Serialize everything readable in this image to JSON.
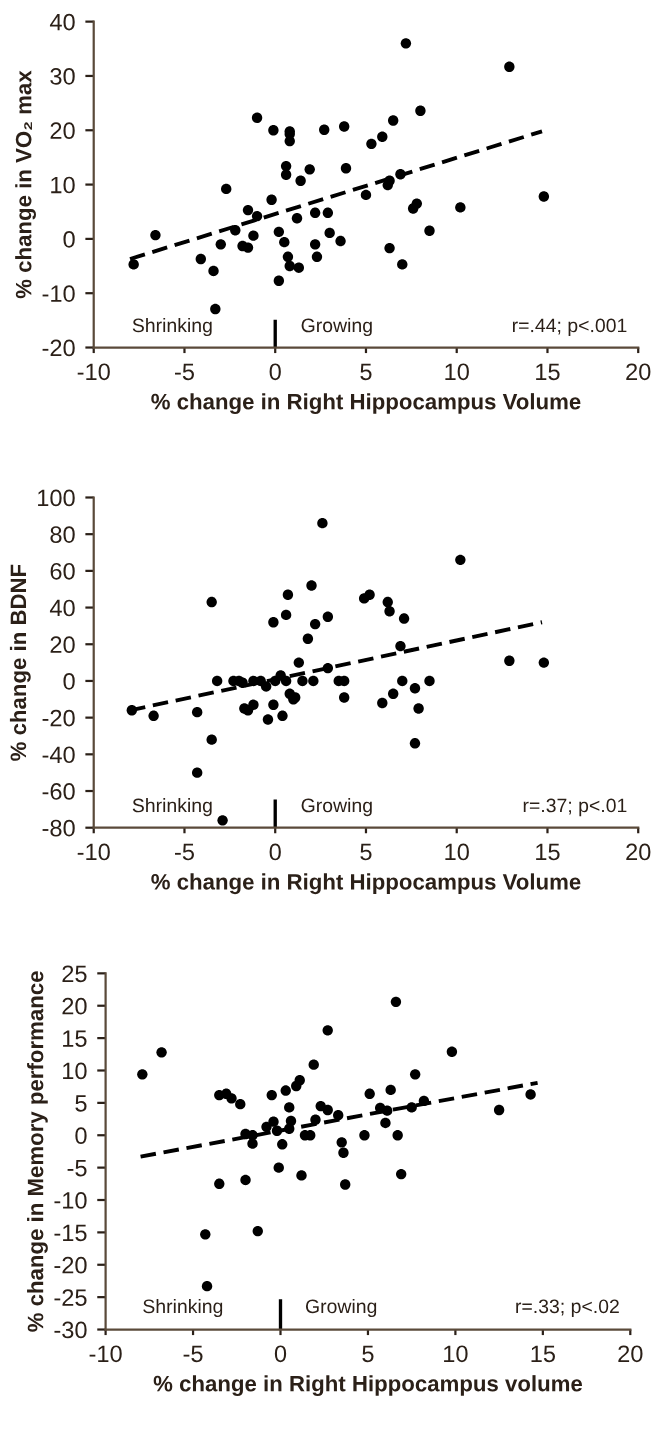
{
  "chart_data": [
    {
      "type": "scatter",
      "xlabel": "% change in Right Hippocampus Volume",
      "ylabel": "% change in VO₂ max",
      "xlim": [
        -10,
        20
      ],
      "xticks": [
        -10,
        -5,
        0,
        5,
        10,
        15,
        20
      ],
      "ylim": [
        -20,
        40
      ],
      "yticks": [
        -20,
        -10,
        0,
        10,
        20,
        30,
        40
      ],
      "grid": false,
      "legend": false,
      "annotations": [
        "Shrinking",
        "Growing",
        "r=.44; p<.001"
      ],
      "series": [
        {
          "color": "#000000",
          "marker": "circle",
          "x": [
            -7.8,
            -6.6,
            -4.1,
            -3.4,
            -3.3,
            -3.0,
            -2.7,
            -2.2,
            -1.8,
            -1.5,
            -1.5,
            -1.2,
            -1.0,
            -1.0,
            -0.1,
            -0.2,
            0.2,
            0.2,
            0.5,
            0.6,
            0.6,
            0.7,
            0.8,
            0.8,
            0.8,
            0.8,
            1.2,
            1.3,
            1.4,
            1.9,
            2.2,
            2.2,
            2.3,
            2.7,
            2.9,
            3.0,
            3.6,
            3.8,
            3.9,
            5.0,
            5.3,
            5.9,
            6.2,
            6.3,
            6.3,
            6.5,
            6.9,
            7.0,
            7.2,
            7.6,
            7.8,
            8.0,
            8.5,
            10.2,
            12.9,
            14.8
          ],
          "values": [
            -4.7,
            0.7,
            -3.7,
            -5.9,
            -12.9,
            -1.0,
            9.2,
            1.6,
            -1.3,
            -1.6,
            5.3,
            0.6,
            4.2,
            22.3,
            20,
            7.2,
            1.3,
            -7.7,
            -0.6,
            13.4,
            11.8,
            -3.3,
            19.8,
            18.0,
            19.3,
            -5.0,
            3.8,
            -5.3,
            10.7,
            12.8,
            4.8,
            -1.0,
            -3.3,
            20.1,
            4.8,
            1.1,
            -0.4,
            20.7,
            13.0,
            8.1,
            17.5,
            18.8,
            9.9,
            -1.7,
            10.7,
            21.8,
            11.9,
            -4.7,
            36.0,
            5.6,
            6.5,
            23.6,
            1.5,
            5.8,
            31.7,
            7.8
          ]
        },
        {
          "type": "line",
          "color": "#000000",
          "line_style": "dashed",
          "marker": "none",
          "x": [
            -8,
            14.7
          ],
          "values": [
            -3.7,
            19.8
          ]
        }
      ]
    },
    {
      "type": "scatter",
      "xlabel": "% change in Right Hippocampus Volume",
      "ylabel": "% change in BDNF",
      "xlim": [
        -10,
        20
      ],
      "xticks": [
        -10,
        -5,
        0,
        5,
        10,
        15,
        20
      ],
      "ylim": [
        -80,
        100
      ],
      "yticks": [
        -80,
        -60,
        -40,
        -20,
        0,
        20,
        40,
        60,
        80,
        100
      ],
      "grid": false,
      "legend": false,
      "annotations": [
        "Shrinking",
        "Growing",
        "r=.37; p<.01"
      ],
      "series": [
        {
          "color": "#000000",
          "marker": "circle",
          "x": [
            -7.9,
            -6.7,
            -4.3,
            -4.3,
            -3.5,
            -3.5,
            -3.2,
            -2.3,
            -2.0,
            -1.8,
            -1.7,
            -1.5,
            -1.2,
            -1.2,
            -0.8,
            -0.5,
            -0.4,
            -0.1,
            -0.1,
            0,
            0.3,
            0.4,
            0.6,
            0.6,
            0.7,
            0.8,
            1.0,
            1.1,
            1.3,
            1.5,
            1.8,
            2.0,
            2.1,
            2.2,
            2.6,
            2.9,
            2.9,
            3.5,
            3.8,
            3.8,
            4.9,
            5.2,
            5.9,
            6.2,
            6.3,
            6.5,
            6.9,
            7.0,
            7.1,
            7.7,
            7.7,
            7.9,
            8.5,
            10.2,
            12.9,
            14.8,
            -2.9
          ],
          "values": [
            -16,
            -19,
            -17,
            -50,
            -32,
            43,
            0,
            0,
            0,
            -1,
            -15,
            -16,
            -13,
            0,
            0,
            -3,
            -21,
            -13,
            32,
            0,
            3,
            -19,
            36,
            0,
            47,
            -7,
            -10,
            -9,
            10,
            0,
            23,
            52,
            0,
            31,
            86,
            35,
            7,
            0,
            0,
            -9,
            45,
            47,
            -12,
            43,
            38,
            -7,
            19,
            0,
            34,
            -34,
            -4,
            -15,
            0,
            66,
            11,
            10,
            -76
          ]
        },
        {
          "type": "line",
          "color": "#000000",
          "line_style": "dashed",
          "marker": "none",
          "x": [
            -8,
            14.7
          ],
          "values": [
            -16,
            32
          ]
        }
      ]
    },
    {
      "type": "scatter",
      "xlabel": "% change in Right Hippocampus volume",
      "ylabel": "% change in Memory performance",
      "xlim": [
        -10,
        20
      ],
      "xticks": [
        -10,
        -5,
        0,
        5,
        10,
        15,
        20
      ],
      "ylim": [
        -30,
        25
      ],
      "yticks": [
        -30,
        -25,
        -20,
        -15,
        -10,
        -5,
        0,
        5,
        10,
        15,
        20,
        25
      ],
      "grid": false,
      "legend": false,
      "annotations": [
        "Shrinking",
        "Growing",
        "r=.33; p<.02"
      ],
      "series": [
        {
          "color": "#000000",
          "marker": "circle",
          "x": [
            -7.9,
            -6.8,
            -4.3,
            -4.2,
            -3.5,
            -3.5,
            -3.1,
            -2.8,
            -2.3,
            -2.0,
            -2.0,
            -1.6,
            -1.6,
            -1.3,
            -0.8,
            -0.5,
            -0.4,
            -0.2,
            -0.1,
            0.1,
            0.3,
            0.5,
            0.5,
            0.6,
            0.9,
            1.1,
            1.2,
            1.4,
            1.7,
            1.9,
            2.0,
            2.3,
            2.7,
            2.7,
            3.3,
            3.5,
            3.6,
            3.7,
            4.8,
            5.1,
            5.7,
            6.0,
            6.1,
            6.3,
            6.6,
            6.7,
            6.9,
            7.5,
            7.7,
            8.2,
            9.8,
            12.5,
            14.3
          ],
          "values": [
            9.4,
            12.8,
            -15.3,
            -23.3,
            6.2,
            -7.5,
            6.4,
            5.7,
            4.8,
            -6.9,
            0.2,
            -1.3,
            0,
            -14.8,
            1.3,
            6.2,
            2.1,
            0.7,
            -5.0,
            -1.4,
            6.9,
            1.0,
            4.3,
            2.2,
            7.6,
            8.5,
            -6.2,
            0,
            0,
            10.9,
            2.4,
            4.5,
            16.2,
            3.9,
            3.1,
            -1.1,
            -2.7,
            -7.6,
            0,
            6.4,
            4.2,
            1.9,
            3.8,
            7.0,
            20.6,
            0,
            -6.0,
            4.3,
            9.4,
            5.3,
            12.9,
            3.9,
            6.3
          ]
        },
        {
          "type": "line",
          "color": "#000000",
          "line_style": "dashed",
          "marker": "none",
          "x": [
            -8,
            14.7
          ],
          "values": [
            -3.3,
            8.1
          ]
        }
      ]
    }
  ]
}
